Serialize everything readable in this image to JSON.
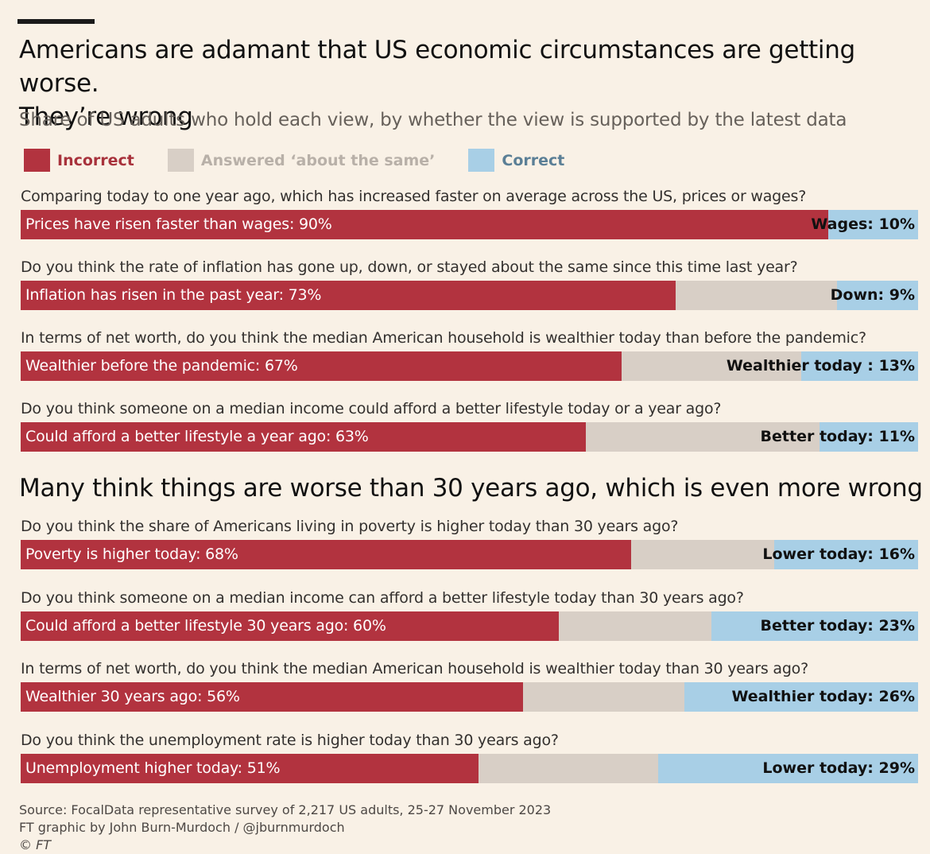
{
  "header": {
    "title_line1": "Americans are adamant that US economic circumstances are getting worse.",
    "title_line2": "They’re wrong",
    "subtitle": "Share of US adults who hold each view, by whether the view is supported by the latest data",
    "section2_title": "Many think things are worse than 30 years ago, which is even more wrong"
  },
  "colors": {
    "incorrect": "#b2333f",
    "same": "#d8cfc6",
    "correct": "#a8cfe6",
    "background": "#f9f1e6"
  },
  "legend": [
    {
      "label": "Incorrect",
      "color": "#b2333f",
      "text_color": "#a8323c"
    },
    {
      "label": "Answered ‘about the same’",
      "color": "#d8cfc6",
      "text_color": "#b8b0a8"
    },
    {
      "label": "Correct",
      "color": "#a8cfe6",
      "text_color": "#5b7f96"
    }
  ],
  "footer": {
    "source": "Source: FocalData representative survey of 2,217 US adults, 25-27 November 2023",
    "credit": "FT graphic by John Burn-Murdoch / @jburnmurdoch",
    "copyright": "© FT"
  },
  "chart_data": {
    "type": "bar",
    "orientation": "horizontal-stacked",
    "title": "Americans are adamant that US economic circumstances are getting worse. They’re wrong",
    "subtitle": "Share of US adults who hold each view, by whether the view is supported by the latest data",
    "xlim": [
      0,
      100
    ],
    "series_names": [
      "Incorrect",
      "Answered ‘about the same’",
      "Correct"
    ],
    "questions": [
      {
        "question": "Comparing today to one year ago, which has increased faster on average across the US, prices or wages?",
        "incorrect": 90,
        "same": 0,
        "correct": 10,
        "incorrect_label": "Prices have risen faster than wages: 90%",
        "correct_label": "Wages: 10%"
      },
      {
        "question": "Do you think the rate of inflation has gone up, down, or stayed about the same since this time last year?",
        "incorrect": 73,
        "same": 18,
        "correct": 9,
        "incorrect_label": "Inflation has risen in the past year: 73%",
        "correct_label": "Down: 9%"
      },
      {
        "question": "In terms of net worth, do you think the median American household is wealthier today than before the pandemic?",
        "incorrect": 67,
        "same": 20,
        "correct": 13,
        "incorrect_label": "Wealthier before the pandemic: 67%",
        "correct_label": "Wealthier today : 13%"
      },
      {
        "question": "Do you think someone on a median income could afford a better lifestyle today or a year ago?",
        "incorrect": 63,
        "same": 26,
        "correct": 11,
        "incorrect_label": "Could afford a better lifestyle a year ago: 63%",
        "correct_label": "Better today: 11%"
      },
      {
        "question": "Do you think the share of Americans living in poverty is higher today than 30 years ago?",
        "incorrect": 68,
        "same": 16,
        "correct": 16,
        "incorrect_label": "Poverty is higher today: 68%",
        "correct_label": "Lower today: 16%"
      },
      {
        "question": "Do you think someone on a median income can afford a better lifestyle today than 30 years ago?",
        "incorrect": 60,
        "same": 17,
        "correct": 23,
        "incorrect_label": "Could afford a better lifestyle 30 years ago: 60%",
        "correct_label": "Better today: 23%"
      },
      {
        "question": "In terms of net worth, do you think the median American household is wealthier today than 30 years ago?",
        "incorrect": 56,
        "same": 18,
        "correct": 26,
        "incorrect_label": "Wealthier 30 years ago: 56%",
        "correct_label": "Wealthier today: 26%"
      },
      {
        "question": "Do you think the unemployment rate is higher today than 30 years ago?",
        "incorrect": 51,
        "same": 20,
        "correct": 29,
        "incorrect_label": "Unemployment higher today: 51%",
        "correct_label": "Lower today: 29%"
      }
    ]
  }
}
